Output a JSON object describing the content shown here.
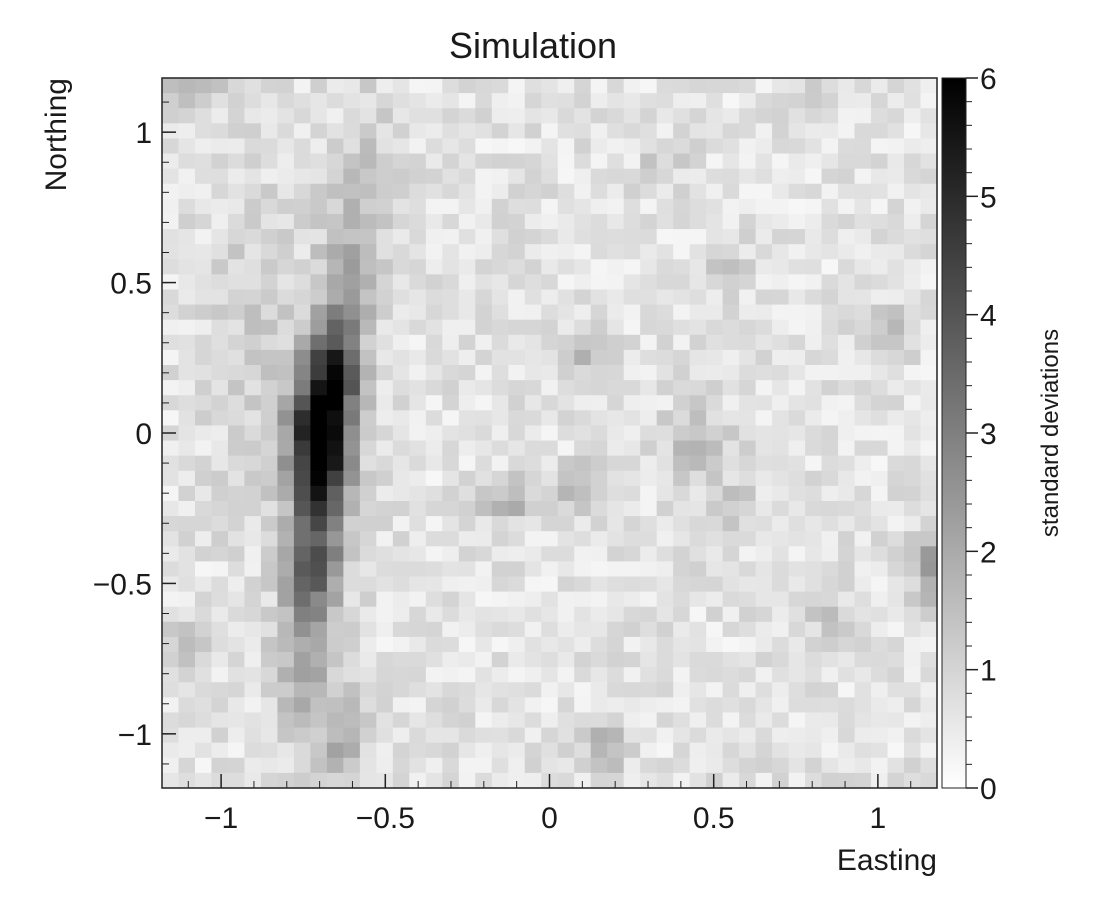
{
  "chart_data": {
    "type": "heatmap",
    "title": "Simulation",
    "xlabel": "Easting",
    "ylabel": "Northing",
    "xlim": [
      -1.18,
      1.18
    ],
    "ylim": [
      -1.18,
      1.18
    ],
    "x_ticks": [
      {
        "value": -1,
        "label": "−1"
      },
      {
        "value": -0.5,
        "label": "−0.5"
      },
      {
        "value": 0,
        "label": "0"
      },
      {
        "value": 0.5,
        "label": "0.5"
      },
      {
        "value": 1,
        "label": "1"
      }
    ],
    "y_ticks": [
      {
        "value": -1,
        "label": "−1"
      },
      {
        "value": -0.5,
        "label": "−0.5"
      },
      {
        "value": 0,
        "label": "0"
      },
      {
        "value": 0.5,
        "label": "0.5"
      },
      {
        "value": 1,
        "label": "1"
      }
    ],
    "grid": false,
    "colorbar": {
      "label": "standard deviations",
      "range": [
        0,
        6
      ],
      "ticks": [
        {
          "value": 0,
          "label": "0"
        },
        {
          "value": 1,
          "label": "1"
        },
        {
          "value": 2,
          "label": "2"
        },
        {
          "value": 3,
          "label": "3"
        },
        {
          "value": 4,
          "label": "4"
        },
        {
          "value": 5,
          "label": "5"
        },
        {
          "value": 6,
          "label": "6"
        }
      ],
      "low_color": "#ffffff",
      "high_color": "#000000",
      "placement": "right"
    },
    "bins": {
      "nx": 47,
      "ny": 47,
      "background_level": 0.6
    },
    "features": [
      {
        "x": -0.7,
        "y": -0.05,
        "sx": 0.06,
        "sy": 0.18,
        "peak": 6.2
      },
      {
        "x": -0.65,
        "y": 0.2,
        "sx": 0.05,
        "sy": 0.12,
        "peak": 3.2
      },
      {
        "x": -0.62,
        "y": 0.48,
        "sx": 0.06,
        "sy": 0.16,
        "peak": 1.4
      },
      {
        "x": -0.56,
        "y": 0.8,
        "sx": 0.07,
        "sy": 0.25,
        "peak": 0.6
      },
      {
        "x": -0.72,
        "y": -0.45,
        "sx": 0.06,
        "sy": 0.12,
        "peak": 2.6
      },
      {
        "x": -0.74,
        "y": -0.78,
        "sx": 0.06,
        "sy": 0.18,
        "peak": 1.6
      },
      {
        "x": -0.62,
        "y": -1.0,
        "sx": 0.04,
        "sy": 0.1,
        "peak": 1.5
      },
      {
        "x": -0.9,
        "y": 0.3,
        "sx": 0.1,
        "sy": 0.4,
        "peak": 0.5
      },
      {
        "x": -1.1,
        "y": 1.15,
        "sx": 0.06,
        "sy": 0.05,
        "peak": 1.2
      },
      {
        "x": 0.12,
        "y": 0.28,
        "sx": 0.05,
        "sy": 0.05,
        "peak": 1.0
      },
      {
        "x": 0.08,
        "y": -0.18,
        "sx": 0.04,
        "sy": 0.05,
        "peak": 1.3
      },
      {
        "x": -0.12,
        "y": -0.23,
        "sx": 0.06,
        "sy": 0.05,
        "peak": 1.3
      },
      {
        "x": 0.45,
        "y": -0.05,
        "sx": 0.07,
        "sy": 0.1,
        "peak": 0.9
      },
      {
        "x": 0.58,
        "y": -0.25,
        "sx": 0.05,
        "sy": 0.06,
        "peak": 0.8
      },
      {
        "x": 0.18,
        "y": -1.05,
        "sx": 0.04,
        "sy": 0.08,
        "peak": 1.3
      },
      {
        "x": 1.15,
        "y": -0.45,
        "sx": 0.03,
        "sy": 0.1,
        "peak": 1.5
      },
      {
        "x": 1.02,
        "y": 0.35,
        "sx": 0.05,
        "sy": 0.06,
        "peak": 0.9
      },
      {
        "x": 0.8,
        "y": 1.1,
        "sx": 0.05,
        "sy": 0.06,
        "peak": 0.7
      },
      {
        "x": 0.55,
        "y": 0.55,
        "sx": 0.05,
        "sy": 0.06,
        "peak": 0.6
      },
      {
        "x": 0.85,
        "y": -0.6,
        "sx": 0.05,
        "sy": 0.06,
        "peak": 0.7
      },
      {
        "x": -1.1,
        "y": -0.7,
        "sx": 0.05,
        "sy": 0.06,
        "peak": 0.6
      },
      {
        "x": 0.35,
        "y": 0.9,
        "sx": 0.05,
        "sy": 0.05,
        "peak": 0.6
      }
    ],
    "noise_amplitude": 0.9,
    "noise_seed": 7
  }
}
